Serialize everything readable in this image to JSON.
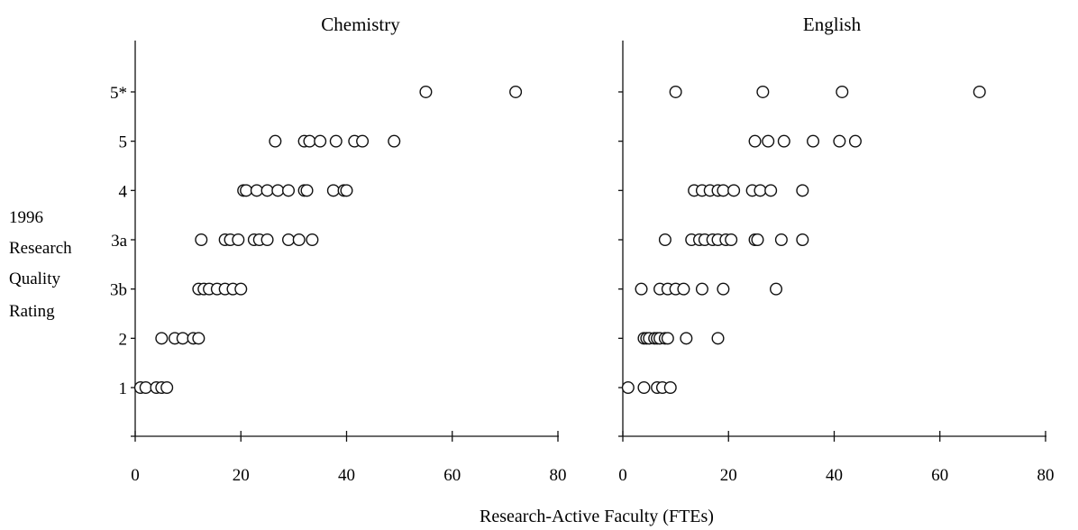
{
  "figure": {
    "xlabel": "Research-Active Faculty (FTEs)",
    "ylabel_lines": [
      "1996",
      "Research",
      "Quality",
      "Rating"
    ]
  },
  "chart_data": [
    {
      "type": "scatter",
      "title": "Chemistry",
      "xlim": [
        0,
        80
      ],
      "xticks": [
        0,
        20,
        40,
        60,
        80
      ],
      "y_categories": [
        "1",
        "2",
        "3b",
        "3a",
        "4",
        "5",
        "5*"
      ],
      "points": [
        {
          "y": "1",
          "x": [
            1,
            2,
            4,
            5,
            6
          ]
        },
        {
          "y": "2",
          "x": [
            5,
            7.5,
            9,
            11,
            12
          ]
        },
        {
          "y": "3b",
          "x": [
            12,
            13,
            14,
            15.5,
            17,
            18.5,
            20
          ]
        },
        {
          "y": "3a",
          "x": [
            12.5,
            17,
            18,
            19.5,
            22.5,
            23.5,
            25,
            29,
            31,
            33.5
          ]
        },
        {
          "y": "4",
          "x": [
            20.5,
            21,
            23,
            25,
            27,
            29,
            32,
            32.5,
            37.5,
            39.5,
            40
          ]
        },
        {
          "y": "5",
          "x": [
            26.5,
            32,
            33,
            35,
            38,
            41.5,
            43,
            49
          ]
        },
        {
          "y": "5*",
          "x": [
            55,
            72
          ]
        }
      ]
    },
    {
      "type": "scatter",
      "title": "English",
      "xlim": [
        0,
        80
      ],
      "xticks": [
        0,
        20,
        40,
        60,
        80
      ],
      "y_categories": [
        "1",
        "2",
        "3b",
        "3a",
        "4",
        "5",
        "5*"
      ],
      "points": [
        {
          "y": "1",
          "x": [
            1,
            4,
            6.5,
            7.5,
            9
          ]
        },
        {
          "y": "2",
          "x": [
            4,
            4.5,
            5,
            6,
            6.5,
            7,
            8,
            8.5,
            12,
            18
          ]
        },
        {
          "y": "3b",
          "x": [
            3.5,
            7,
            8.5,
            10,
            11.5,
            15,
            19,
            29
          ]
        },
        {
          "y": "3a",
          "x": [
            8,
            13,
            14.5,
            15.5,
            17,
            18,
            19.5,
            20.5,
            25,
            25.5,
            30,
            34
          ]
        },
        {
          "y": "4",
          "x": [
            13.5,
            15,
            16.5,
            18,
            19,
            21,
            24.5,
            26,
            28,
            34
          ]
        },
        {
          "y": "5",
          "x": [
            25,
            27.5,
            30.5,
            36,
            41,
            44
          ]
        },
        {
          "y": "5*",
          "x": [
            10,
            26.5,
            41.5,
            67.5
          ]
        }
      ]
    }
  ]
}
